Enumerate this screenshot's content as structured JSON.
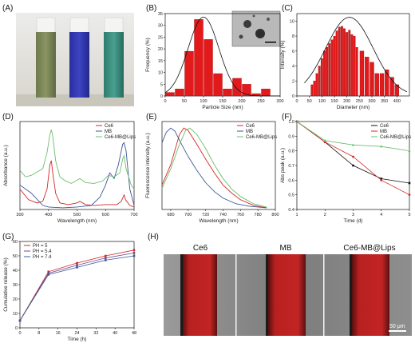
{
  "panels": {
    "A": {
      "label": "(A)"
    },
    "B": {
      "label": "(B)"
    },
    "C": {
      "label": "(C)"
    },
    "D": {
      "label": "(D)"
    },
    "E": {
      "label": "(E)"
    },
    "F": {
      "label": "(F)"
    },
    "G": {
      "label": "(G)"
    },
    "H": {
      "label": "(H)",
      "titles": [
        "Ce6",
        "MB",
        "Ce6-MB@Lips"
      ],
      "scale_bar": "50 μm"
    }
  },
  "colors": {
    "ce6": "#d62728",
    "mb": "#3b5998",
    "lips": "#6bbf6b",
    "bar": "#e31a1c",
    "black": "#111111"
  },
  "chart_data": [
    {
      "id": "B",
      "type": "bar",
      "xlabel": "Particle Size (nm)",
      "ylabel": "Frequency (%)",
      "xlim": [
        0,
        300
      ],
      "ylim": [
        0,
        35
      ],
      "xticks": [
        "0",
        "50",
        "100",
        "150",
        "200",
        "250",
        "300"
      ],
      "yticks": [
        "0",
        "5",
        "10",
        "15",
        "20",
        "25",
        "30",
        "35"
      ],
      "x": [
        12.5,
        37.5,
        62.5,
        87.5,
        112.5,
        137.5,
        162.5,
        187.5,
        212.5,
        237.5,
        262.5,
        287.5
      ],
      "values": [
        1.5,
        3,
        19,
        32.5,
        24,
        9.5,
        3,
        7.5,
        5,
        1,
        3,
        0
      ],
      "fit": {
        "mean": 100,
        "sd": 40,
        "peak": 33.5
      }
    },
    {
      "id": "C",
      "type": "bar",
      "xlabel": "Diameter (nm)",
      "ylabel": "Intensity (%)",
      "xlim": [
        0,
        450
      ],
      "ylim": [
        0,
        11
      ],
      "xticks": [
        "0",
        "50",
        "100",
        "150",
        "200",
        "250",
        "300",
        "350",
        "400"
      ],
      "yticks": [
        "0",
        "2",
        "4",
        "6",
        "8",
        "10"
      ],
      "x": [
        60,
        70,
        80,
        90,
        100,
        110,
        120,
        130,
        140,
        150,
        160,
        170,
        180,
        190,
        200,
        210,
        220,
        230,
        240,
        260,
        280,
        300,
        320,
        340,
        360,
        380,
        400
      ],
      "values": [
        1.5,
        2,
        3,
        4,
        5,
        6,
        6.5,
        7,
        7.5,
        8,
        8.7,
        9.2,
        9.3,
        9,
        8.5,
        8.8,
        8.2,
        8,
        6.5,
        6,
        5.2,
        4.5,
        3,
        3,
        3.5,
        2.5,
        1.5
      ],
      "fit": {
        "mean": 210,
        "sd": 95,
        "peak": 10.5
      }
    },
    {
      "id": "D",
      "type": "line",
      "xlabel": "Wavelength (nm)",
      "ylabel": "Absorbance (a.u.)",
      "xlim": [
        300,
        700
      ],
      "xticks": [
        "300",
        "400",
        "500",
        "600",
        "700"
      ],
      "legend_position": "top-right",
      "series": [
        {
          "name": "Ce6",
          "color": "#d62728",
          "points": [
            [
              300,
              0.25
            ],
            [
              330,
              0.12
            ],
            [
              360,
              0.08
            ],
            [
              380,
              0.1
            ],
            [
              395,
              0.25
            ],
            [
              405,
              0.55
            ],
            [
              410,
              0.6
            ],
            [
              415,
              0.45
            ],
            [
              425,
              0.2
            ],
            [
              440,
              0.08
            ],
            [
              470,
              0.06
            ],
            [
              500,
              0.08
            ],
            [
              510,
              0.1
            ],
            [
              530,
              0.06
            ],
            [
              560,
              0.05
            ],
            [
              600,
              0.06
            ],
            [
              640,
              0.06
            ],
            [
              655,
              0.1
            ],
            [
              665,
              0.18
            ],
            [
              670,
              0.12
            ],
            [
              685,
              0.05
            ],
            [
              700,
              0.03
            ]
          ]
        },
        {
          "name": "MB",
          "color": "#3b5998",
          "points": [
            [
              300,
              0.3
            ],
            [
              320,
              0.25
            ],
            [
              340,
              0.2
            ],
            [
              380,
              0.05
            ],
            [
              400,
              0.03
            ],
            [
              450,
              0.02
            ],
            [
              500,
              0.03
            ],
            [
              550,
              0.05
            ],
            [
              580,
              0.15
            ],
            [
              600,
              0.3
            ],
            [
              615,
              0.45
            ],
            [
              630,
              0.38
            ],
            [
              645,
              0.55
            ],
            [
              660,
              0.8
            ],
            [
              665,
              0.82
            ],
            [
              672,
              0.72
            ],
            [
              685,
              0.25
            ],
            [
              700,
              0.05
            ]
          ]
        },
        {
          "name": "Ce6-MB@Lips",
          "color": "#6bbf6b",
          "points": [
            [
              300,
              0.48
            ],
            [
              320,
              0.4
            ],
            [
              340,
              0.42
            ],
            [
              360,
              0.46
            ],
            [
              380,
              0.5
            ],
            [
              395,
              0.7
            ],
            [
              405,
              0.92
            ],
            [
              410,
              0.98
            ],
            [
              415,
              0.9
            ],
            [
              425,
              0.6
            ],
            [
              440,
              0.4
            ],
            [
              460,
              0.35
            ],
            [
              480,
              0.32
            ],
            [
              500,
              0.36
            ],
            [
              510,
              0.38
            ],
            [
              530,
              0.33
            ],
            [
              560,
              0.32
            ],
            [
              590,
              0.35
            ],
            [
              610,
              0.42
            ],
            [
              630,
              0.4
            ],
            [
              650,
              0.45
            ],
            [
              660,
              0.62
            ],
            [
              665,
              0.66
            ],
            [
              672,
              0.5
            ],
            [
              690,
              0.3
            ],
            [
              700,
              0.25
            ]
          ]
        }
      ]
    },
    {
      "id": "E",
      "type": "line",
      "xlabel": "Wavelength (nm)",
      "ylabel": "Fluorescence intensity (a.u.)",
      "xlim": [
        670,
        800
      ],
      "xticks": [
        "680",
        "700",
        "720",
        "740",
        "760",
        "780",
        "800"
      ],
      "legend_position": "top-right",
      "series": [
        {
          "name": "Ce6",
          "color": "#d62728",
          "points": [
            [
              670,
              0.3
            ],
            [
              680,
              0.55
            ],
            [
              690,
              0.92
            ],
            [
              695,
              1.0
            ],
            [
              700,
              0.97
            ],
            [
              710,
              0.8
            ],
            [
              720,
              0.62
            ],
            [
              730,
              0.45
            ],
            [
              740,
              0.3
            ],
            [
              750,
              0.2
            ],
            [
              760,
              0.12
            ],
            [
              775,
              0.05
            ],
            [
              790,
              0.02
            ]
          ]
        },
        {
          "name": "MB",
          "color": "#3b5998",
          "points": [
            [
              670,
              0.82
            ],
            [
              675,
              0.95
            ],
            [
              680,
              1.0
            ],
            [
              685,
              0.96
            ],
            [
              690,
              0.85
            ],
            [
              700,
              0.65
            ],
            [
              710,
              0.48
            ],
            [
              720,
              0.33
            ],
            [
              730,
              0.22
            ],
            [
              740,
              0.14
            ],
            [
              755,
              0.07
            ],
            [
              770,
              0.04
            ],
            [
              790,
              0.02
            ]
          ]
        },
        {
          "name": "Ce6-MB@Lips",
          "color": "#6bbf6b",
          "points": [
            [
              670,
              0.26
            ],
            [
              680,
              0.5
            ],
            [
              690,
              0.8
            ],
            [
              697,
              0.97
            ],
            [
              702,
              1.0
            ],
            [
              710,
              0.92
            ],
            [
              720,
              0.75
            ],
            [
              730,
              0.55
            ],
            [
              740,
              0.38
            ],
            [
              750,
              0.25
            ],
            [
              760,
              0.16
            ],
            [
              775,
              0.07
            ],
            [
              790,
              0.03
            ]
          ]
        }
      ]
    },
    {
      "id": "F",
      "type": "line",
      "xlabel": "Time (d)",
      "ylabel": "Abs peak (a.u.)",
      "xlim": [
        1,
        5
      ],
      "ylim": [
        0.4,
        1.0
      ],
      "xticks": [
        "1",
        "2",
        "3",
        "4",
        "5"
      ],
      "yticks": [
        "0.4",
        "0.5",
        "0.6",
        "0.7",
        "0.8",
        "0.9",
        "1.0"
      ],
      "legend_position": "top-right",
      "series": [
        {
          "name": "Ce6",
          "color": "#111111",
          "marker": "square",
          "x": [
            1,
            2,
            3,
            4,
            5
          ],
          "values": [
            1.0,
            0.86,
            0.7,
            0.61,
            0.58
          ]
        },
        {
          "name": "MB",
          "color": "#d62728",
          "marker": "circle",
          "x": [
            1,
            2,
            3,
            4,
            5
          ],
          "values": [
            1.0,
            0.86,
            0.76,
            0.6,
            0.5
          ]
        },
        {
          "name": "Ce6-MB@Lips",
          "color": "#6bbf6b",
          "marker": "triangle",
          "x": [
            1,
            2,
            3,
            4,
            5
          ],
          "values": [
            1.0,
            0.87,
            0.84,
            0.83,
            0.8
          ]
        }
      ]
    },
    {
      "id": "G",
      "type": "line",
      "xlabel": "Time (h)",
      "ylabel": "Cumulative release (%)",
      "xlim": [
        0,
        48
      ],
      "ylim": [
        0,
        60
      ],
      "xticks": [
        "0",
        "8",
        "16",
        "24",
        "32",
        "40",
        "48"
      ],
      "yticks": [
        "0",
        "10",
        "20",
        "30",
        "40",
        "50",
        "60"
      ],
      "legend_position": "top-left",
      "series": [
        {
          "name": "PH = 5",
          "color": "#d62728",
          "marker": "square",
          "x": [
            0,
            12,
            24,
            36,
            48
          ],
          "values": [
            5,
            39,
            45,
            50,
            54
          ]
        },
        {
          "name": "PH = 5.4",
          "color": "#6a4c93",
          "marker": "square",
          "x": [
            0,
            12,
            24,
            36,
            48
          ],
          "values": [
            5,
            38,
            43.5,
            48.5,
            52
          ]
        },
        {
          "name": "PH = 7.4",
          "color": "#3b5998",
          "marker": "square",
          "x": [
            0,
            12,
            24,
            36,
            48
          ],
          "values": [
            5,
            37,
            42,
            47,
            50
          ]
        }
      ]
    }
  ]
}
